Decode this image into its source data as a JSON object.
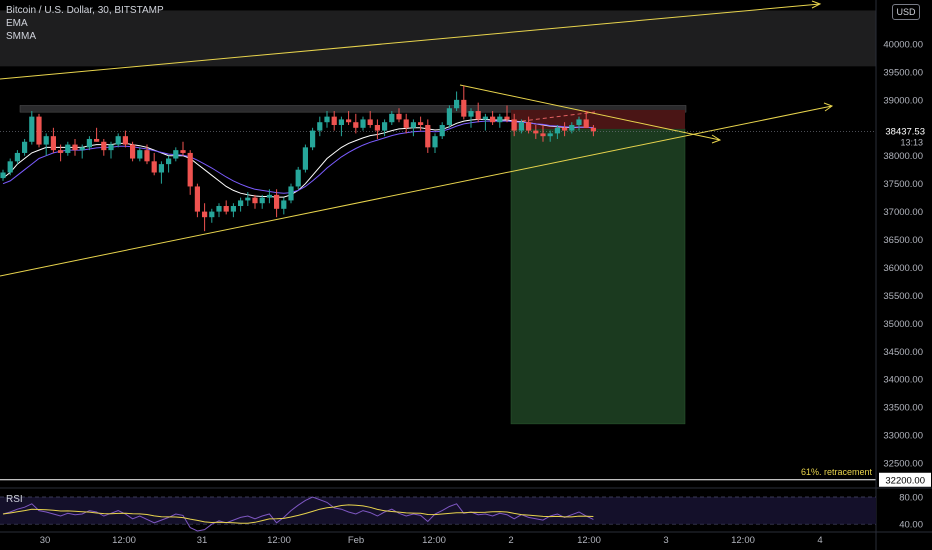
{
  "header": {
    "symbol_line": "Bitcoin / U.S. Dollar, 30, BITSTAMP",
    "indicators": [
      "EMA",
      "SMMA"
    ],
    "currency": "USD"
  },
  "colors": {
    "up": "#26a69a",
    "down": "#ef5350",
    "trendline": "#e8d44d",
    "ema": "#ffffff",
    "smma": "#7b5cff",
    "rsi": "#e8d44d",
    "target_zone": "#1b3a1f",
    "stop_zone": "#4a1515"
  },
  "chart_data": {
    "type": "candlestick",
    "instrument": "Bitcoin / U.S. Dollar",
    "timeframe": "30",
    "exchange": "BITSTAMP",
    "y_axis": {
      "min": 32000,
      "max": 40500,
      "ticks": [
        40000,
        39500,
        39000,
        38500,
        38000,
        37500,
        37000,
        36500,
        36000,
        35500,
        35000,
        34500,
        34000,
        33500,
        33000,
        32500
      ],
      "tick_labels": [
        "40000.00",
        "39500.00",
        "39000.00",
        "38500.00",
        "38000.00",
        "37500.00",
        "37000.00",
        "36500.00",
        "36000.00",
        "35500.00",
        "35000.00",
        "34500.00",
        "34000.00",
        "33500.00",
        "33000.00",
        "32500.00"
      ]
    },
    "x_axis": {
      "ticks": [
        "30",
        "12:00",
        "31",
        "12:00",
        "Feb",
        "12:00",
        "2",
        "12:00",
        "3",
        "12:00",
        "4"
      ]
    },
    "current_price": {
      "value": 38437.53,
      "label": "38437.53",
      "countdown": "13:13"
    },
    "level_label": {
      "value": 32200,
      "label": "32200.00",
      "annotation": "61%. retracement"
    },
    "resistance_zone": [
      39600,
      40600
    ],
    "candles_ohlc": [
      [
        37600,
        37750,
        37550,
        37700
      ],
      [
        37700,
        37950,
        37650,
        37900
      ],
      [
        37900,
        38100,
        37850,
        38050
      ],
      [
        38050,
        38300,
        38000,
        38250
      ],
      [
        38250,
        38800,
        38200,
        38700
      ],
      [
        38700,
        38750,
        38150,
        38200
      ],
      [
        38200,
        38400,
        38000,
        38350
      ],
      [
        38350,
        38500,
        38050,
        38100
      ],
      [
        38100,
        38200,
        37900,
        38050
      ],
      [
        38050,
        38250,
        38000,
        38200
      ],
      [
        38200,
        38300,
        38000,
        38100
      ],
      [
        38100,
        38200,
        37950,
        38150
      ],
      [
        38150,
        38350,
        38100,
        38300
      ],
      [
        38300,
        38500,
        38250,
        38250
      ],
      [
        38250,
        38300,
        38000,
        38100
      ],
      [
        38100,
        38250,
        37950,
        38200
      ],
      [
        38200,
        38400,
        38150,
        38350
      ],
      [
        38350,
        38450,
        38150,
        38200
      ],
      [
        38200,
        38250,
        37900,
        37950
      ],
      [
        37950,
        38150,
        37900,
        38100
      ],
      [
        38100,
        38200,
        37850,
        37900
      ],
      [
        37900,
        38050,
        37650,
        37700
      ],
      [
        37700,
        37900,
        37500,
        37850
      ],
      [
        37850,
        38000,
        37700,
        37950
      ],
      [
        37950,
        38150,
        37900,
        38100
      ],
      [
        38100,
        38250,
        38000,
        38050
      ],
      [
        38050,
        38100,
        37300,
        37450
      ],
      [
        37450,
        37500,
        36900,
        37000
      ],
      [
        37000,
        37150,
        36650,
        36900
      ],
      [
        36900,
        37050,
        36800,
        37000
      ],
      [
        37000,
        37150,
        36900,
        37100
      ],
      [
        37100,
        37200,
        36950,
        37000
      ],
      [
        37000,
        37150,
        36900,
        37100
      ],
      [
        37100,
        37250,
        37000,
        37200
      ],
      [
        37200,
        37350,
        37100,
        37250
      ],
      [
        37250,
        37300,
        37050,
        37150
      ],
      [
        37150,
        37300,
        37050,
        37250
      ],
      [
        37250,
        37400,
        37150,
        37300
      ],
      [
        37300,
        37400,
        36900,
        37050
      ],
      [
        37050,
        37250,
        36950,
        37200
      ],
      [
        37200,
        37500,
        37150,
        37450
      ],
      [
        37450,
        37800,
        37400,
        37750
      ],
      [
        37750,
        38200,
        37700,
        38150
      ],
      [
        38150,
        38500,
        38100,
        38450
      ],
      [
        38450,
        38700,
        38350,
        38600
      ],
      [
        38600,
        38800,
        38500,
        38700
      ],
      [
        38700,
        38800,
        38450,
        38550
      ],
      [
        38550,
        38700,
        38350,
        38650
      ],
      [
        38650,
        38800,
        38550,
        38600
      ],
      [
        38600,
        38750,
        38400,
        38500
      ],
      [
        38500,
        38700,
        38450,
        38650
      ],
      [
        38650,
        38800,
        38500,
        38550
      ],
      [
        38550,
        38650,
        38300,
        38450
      ],
      [
        38450,
        38650,
        38350,
        38600
      ],
      [
        38600,
        38800,
        38550,
        38750
      ],
      [
        38750,
        38850,
        38600,
        38650
      ],
      [
        38650,
        38750,
        38400,
        38500
      ],
      [
        38500,
        38650,
        38350,
        38600
      ],
      [
        38600,
        38700,
        38450,
        38550
      ],
      [
        38550,
        38650,
        38050,
        38150
      ],
      [
        38150,
        38400,
        38050,
        38350
      ],
      [
        38350,
        38600,
        38300,
        38550
      ],
      [
        38550,
        38900,
        38500,
        38850
      ],
      [
        38850,
        39150,
        38800,
        39000
      ],
      [
        39000,
        39250,
        38650,
        38700
      ],
      [
        38700,
        38850,
        38500,
        38800
      ],
      [
        38800,
        38950,
        38600,
        38650
      ],
      [
        38650,
        38750,
        38450,
        38700
      ],
      [
        38700,
        38800,
        38550,
        38600
      ],
      [
        38600,
        38750,
        38500,
        38700
      ],
      [
        38700,
        38900,
        38600,
        38650
      ],
      [
        38650,
        38750,
        38350,
        38450
      ],
      [
        38450,
        38650,
        38400,
        38600
      ],
      [
        38600,
        38700,
        38400,
        38450
      ],
      [
        38450,
        38550,
        38300,
        38400
      ],
      [
        38400,
        38550,
        38250,
        38350
      ],
      [
        38350,
        38450,
        38250,
        38400
      ],
      [
        38400,
        38550,
        38300,
        38500
      ],
      [
        38500,
        38600,
        38350,
        38450
      ],
      [
        38450,
        38600,
        38400,
        38550
      ],
      [
        38550,
        38700,
        38450,
        38650
      ],
      [
        38650,
        38800,
        38550,
        38500
      ],
      [
        38500,
        38550,
        38350,
        38437.53
      ]
    ],
    "series": [
      {
        "name": "EMA",
        "values": [
          37600,
          37700,
          37850,
          37950,
          38050,
          38100,
          38150,
          38150,
          38150,
          38150,
          38150,
          38150,
          38180,
          38200,
          38200,
          38200,
          38220,
          38220,
          38200,
          38180,
          38150,
          38100,
          38050,
          38000,
          38000,
          38000,
          37950,
          37850,
          37750,
          37650,
          37550,
          37450,
          37380,
          37330,
          37300,
          37280,
          37270,
          37270,
          37260,
          37260,
          37300,
          37380,
          37500,
          37650,
          37800,
          37950,
          38050,
          38150,
          38220,
          38270,
          38320,
          38360,
          38380,
          38410,
          38450,
          38480,
          38490,
          38500,
          38500,
          38480,
          38460,
          38470,
          38520,
          38580,
          38620,
          38640,
          38650,
          38650,
          38640,
          38640,
          38640,
          38620,
          38610,
          38590,
          38570,
          38550,
          38530,
          38520,
          38510,
          38500,
          38510,
          38510,
          38500
        ]
      },
      {
        "name": "SMMA",
        "values": [
          37500,
          37550,
          37650,
          37750,
          37850,
          37950,
          38000,
          38050,
          38080,
          38100,
          38100,
          38100,
          38120,
          38140,
          38150,
          38150,
          38170,
          38170,
          38160,
          38140,
          38120,
          38090,
          38060,
          38030,
          38020,
          38010,
          37980,
          37920,
          37850,
          37780,
          37700,
          37620,
          37550,
          37490,
          37440,
          37400,
          37380,
          37360,
          37340,
          37330,
          37340,
          37380,
          37450,
          37550,
          37660,
          37780,
          37880,
          37980,
          38060,
          38130,
          38190,
          38240,
          38280,
          38320,
          38360,
          38390,
          38410,
          38430,
          38440,
          38440,
          38430,
          38440,
          38480,
          38530,
          38570,
          38590,
          38610,
          38620,
          38620,
          38620,
          38620,
          38610,
          38600,
          38590,
          38570,
          38560,
          38540,
          38530,
          38520,
          38510,
          38510,
          38510,
          38500
        ]
      }
    ],
    "rsi": {
      "label": "RSI",
      "upper": 80,
      "lower": 40,
      "tick_labels": [
        "80.00",
        "40.00"
      ],
      "values": [
        55,
        58,
        62,
        65,
        70,
        60,
        58,
        55,
        52,
        56,
        54,
        55,
        60,
        58,
        52,
        56,
        60,
        55,
        48,
        52,
        47,
        42,
        46,
        50,
        55,
        53,
        35,
        30,
        32,
        40,
        45,
        42,
        46,
        50,
        52,
        48,
        52,
        55,
        42,
        50,
        60,
        68,
        75,
        80,
        76,
        72,
        64,
        62,
        58,
        55,
        60,
        57,
        52,
        58,
        62,
        56,
        52,
        55,
        53,
        44,
        55,
        60,
        66,
        70,
        56,
        58,
        54,
        55,
        52,
        56,
        54,
        48,
        54,
        50,
        48,
        46,
        52,
        55,
        50,
        54,
        58,
        52,
        47
      ]
    }
  }
}
